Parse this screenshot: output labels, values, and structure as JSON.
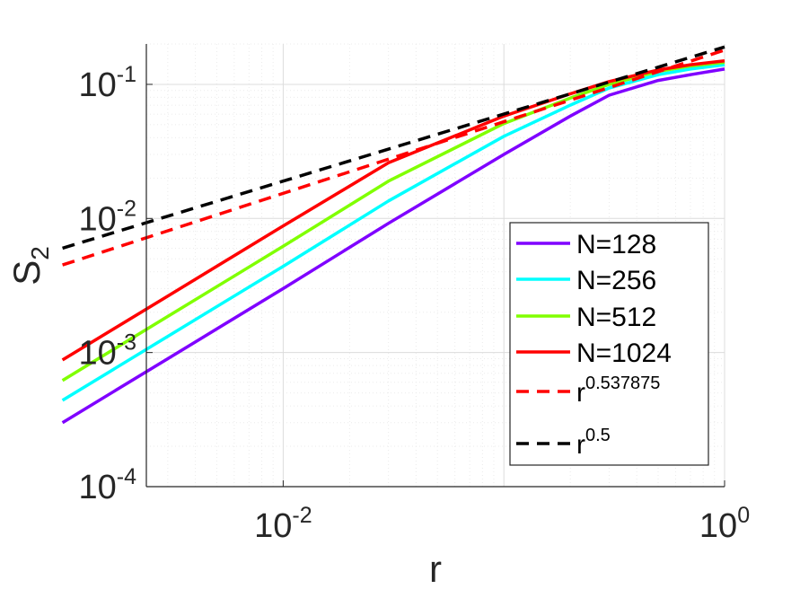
{
  "chart_data": {
    "type": "line",
    "xlabel": "r",
    "ylabel": "S",
    "ylabel_sub": "2",
    "xscale": "log",
    "yscale": "log",
    "xlim": [
      0.001,
      1
    ],
    "ylim": [
      0.0001,
      0.2
    ],
    "grid": true,
    "minor_grid": true,
    "legend_position": "lower-right",
    "x_ticks": [
      {
        "base": "10",
        "exp": "-2",
        "value": 0.01
      },
      {
        "base": "10",
        "exp": "0",
        "value": 1
      }
    ],
    "y_ticks": [
      {
        "base": "10",
        "exp": "-4",
        "value": 0.0001
      },
      {
        "base": "10",
        "exp": "-3",
        "value": 0.001
      },
      {
        "base": "10",
        "exp": "-2",
        "value": 0.01
      },
      {
        "base": "10",
        "exp": "-1",
        "value": 0.1
      }
    ],
    "series": [
      {
        "name": "N=128",
        "color": "#7f00ff",
        "style": "solid",
        "x": [
          0.001,
          0.003,
          0.01,
          0.03,
          0.1,
          0.2,
          0.3,
          0.5,
          0.7,
          1.0
        ],
        "y": [
          0.0003,
          0.0009,
          0.003,
          0.0092,
          0.03,
          0.058,
          0.083,
          0.107,
          0.118,
          0.13
        ]
      },
      {
        "name": "N=256",
        "color": "#00ffff",
        "style": "solid",
        "x": [
          0.001,
          0.003,
          0.01,
          0.03,
          0.1,
          0.2,
          0.3,
          0.5,
          0.7,
          1.0
        ],
        "y": [
          0.00044,
          0.00132,
          0.0044,
          0.0135,
          0.041,
          0.07,
          0.094,
          0.118,
          0.13,
          0.14
        ]
      },
      {
        "name": "N=512",
        "color": "#80ff00",
        "style": "solid",
        "x": [
          0.001,
          0.003,
          0.01,
          0.03,
          0.1,
          0.2,
          0.3,
          0.5,
          0.7,
          1.0
        ],
        "y": [
          0.00062,
          0.00186,
          0.0062,
          0.019,
          0.051,
          0.079,
          0.1,
          0.125,
          0.137,
          0.146
        ]
      },
      {
        "name": "N=1024",
        "color": "#ff0000",
        "style": "solid",
        "x": [
          0.001,
          0.003,
          0.01,
          0.03,
          0.1,
          0.2,
          0.3,
          0.5,
          0.7,
          1.0
        ],
        "y": [
          0.00088,
          0.00264,
          0.0088,
          0.026,
          0.058,
          0.085,
          0.105,
          0.128,
          0.14,
          0.15
        ]
      },
      {
        "name": "r",
        "name_exp": "0.537875",
        "color": "#ff0000",
        "style": "dashed",
        "x": [
          0.001,
          1.0
        ],
        "y": [
          0.0045,
          0.18
        ]
      },
      {
        "name": "r",
        "name_exp": "0.5",
        "color": "#000000",
        "style": "dashed",
        "x": [
          0.001,
          1.0
        ],
        "y": [
          0.006,
          0.19
        ]
      }
    ]
  }
}
